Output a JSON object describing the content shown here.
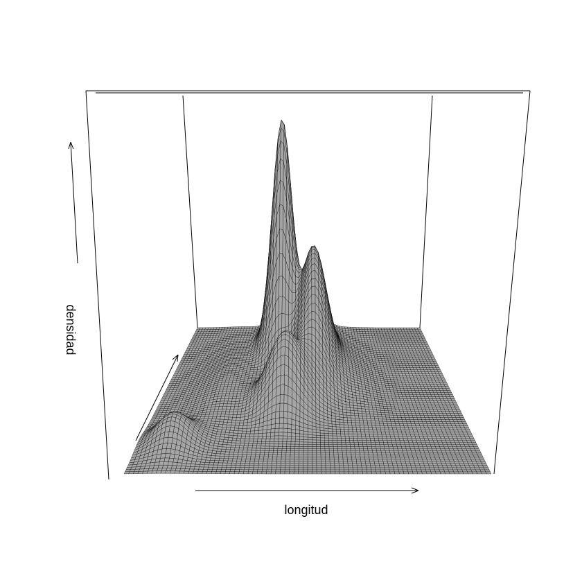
{
  "chart_data": {
    "type": "surface",
    "title": "",
    "xlabel": "longitud",
    "ylabel": "",
    "zlabel": "densidad",
    "axes": {
      "ticks": false,
      "box": true,
      "arrows": true
    },
    "view": {
      "theta": 0,
      "phi": 35
    },
    "surface": {
      "function": "sum of gaussian bumps",
      "grid_x": 80,
      "grid_y": 70,
      "bumps": [
        {
          "x": 0.39,
          "y": 0.86,
          "sx": 0.04,
          "sy": 0.085,
          "h": 1.0
        },
        {
          "x": 0.52,
          "y": 0.72,
          "sx": 0.05,
          "sy": 0.14,
          "h": 0.55
        },
        {
          "x": 0.42,
          "y": 0.45,
          "sx": 0.055,
          "sy": 0.08,
          "h": 0.36
        },
        {
          "x": 0.1,
          "y": 0.2,
          "sx": 0.05,
          "sy": 0.07,
          "h": 0.16
        },
        {
          "x": 0.22,
          "y": 0.55,
          "sx": 0.08,
          "sy": 0.2,
          "h": 0.06
        },
        {
          "x": 0.65,
          "y": 0.65,
          "sx": 0.06,
          "sy": 0.15,
          "h": 0.04
        }
      ]
    },
    "colors": {
      "fill": "#a6a6a6",
      "line": "#000000",
      "background": "#ffffff"
    }
  }
}
